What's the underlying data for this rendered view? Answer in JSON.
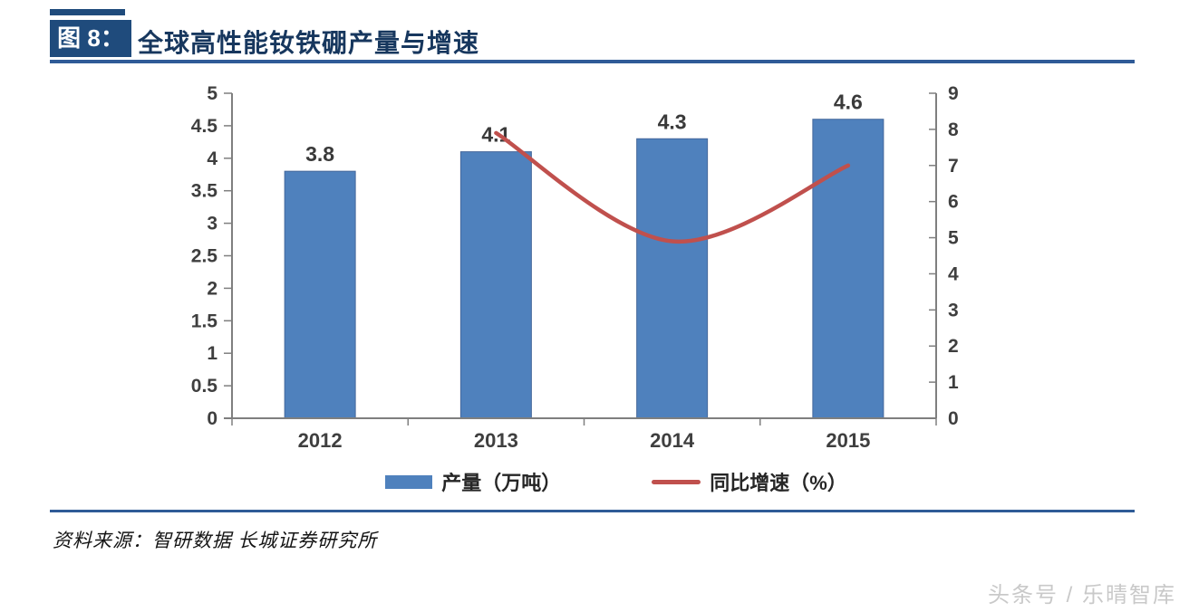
{
  "header": {
    "figure_label": "图 8：",
    "title": "全球高性能钕铁硼产量与增速"
  },
  "chart_data": {
    "type": "bar",
    "title": "全球高性能钕铁硼产量与增速",
    "categories": [
      "2012",
      "2013",
      "2014",
      "2015"
    ],
    "series": [
      {
        "name": "产量（万吨）",
        "type": "bar",
        "axis": "left",
        "values": [
          3.8,
          4.1,
          4.3,
          4.6
        ],
        "labels": [
          "3.8",
          "4.1",
          "4.3",
          "4.6"
        ],
        "color": "#4F81BD",
        "border_color": "#44679B"
      },
      {
        "name": "同比增速（%）",
        "type": "line",
        "axis": "right",
        "values": [
          null,
          7.9,
          4.9,
          7.0
        ],
        "color": "#C0504D",
        "smooth": true
      }
    ],
    "left_axis": {
      "min": 0,
      "max": 5,
      "step": 0.5,
      "ticks": [
        "0",
        "0.5",
        "1",
        "1.5",
        "2",
        "2.5",
        "3",
        "3.5",
        "4",
        "4.5",
        "5"
      ]
    },
    "right_axis": {
      "min": 0,
      "max": 9,
      "step": 1,
      "ticks": [
        "0",
        "1",
        "2",
        "3",
        "4",
        "5",
        "6",
        "7",
        "8",
        "9"
      ]
    },
    "xlabel": "",
    "ylabel": "",
    "grid": false,
    "legend_position": "bottom",
    "legend": [
      {
        "label": "产量（万吨）",
        "swatch": "bar",
        "color": "#4F81BD"
      },
      {
        "label": "同比增速（%）",
        "swatch": "line",
        "color": "#C0504D"
      }
    ],
    "axis_color": "#7F7F7F",
    "tick_label_color": "#3F3F3F"
  },
  "footer": {
    "source": "资料来源：智研数据  长城证券研究所",
    "watermark": "头条号 / 乐晴智库"
  },
  "colors": {
    "accent_navy": "#1F4B7C",
    "rule_blue": "#2F5B97",
    "bar_blue": "#4F81BD",
    "line_red": "#C0504D",
    "title_text": "#17375E",
    "watermark_gray": "#C9C9C9"
  }
}
